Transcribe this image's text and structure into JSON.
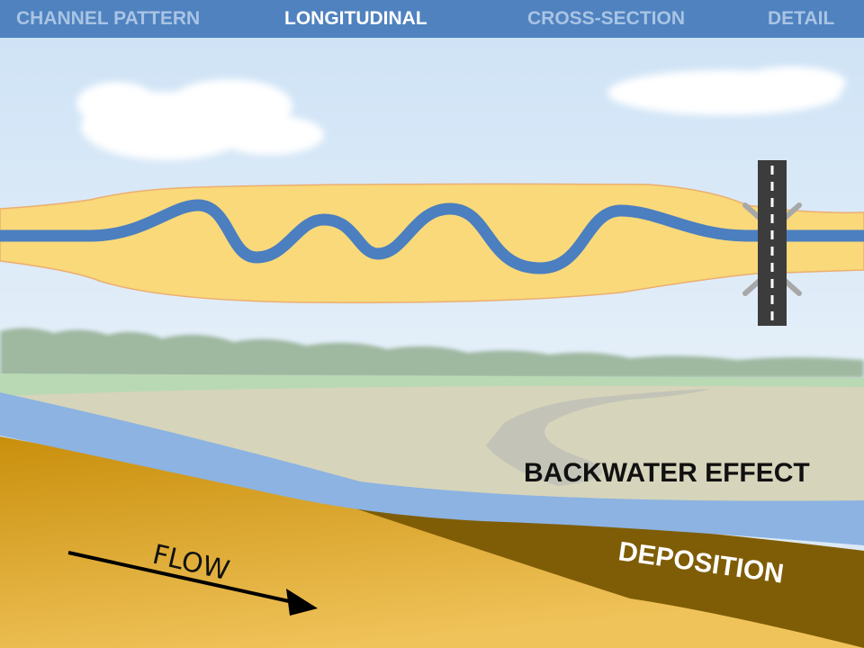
{
  "nav": {
    "tabs": [
      {
        "label": "CHANNEL PATTERN",
        "active": false
      },
      {
        "label": "LONGITUDINAL",
        "active": true
      },
      {
        "label": "CROSS-SECTION",
        "active": false
      },
      {
        "label": "DETAIL",
        "active": false
      }
    ]
  },
  "labels": {
    "backwater": "BACKWATER EFFECT",
    "deposition": "DEPOSITION",
    "flow": "FLOW"
  },
  "colors": {
    "nav_bar": "#4f82bf",
    "tab_active": "#ffffff",
    "tab_inactive": "#a9c4e4",
    "floodplain": "#f9d97a",
    "channel": "#4b7fc0",
    "water_profile": "#8cb3e2",
    "bed": "#d49a16",
    "deposition": "#7f5d06",
    "road": "#3c3c3c"
  },
  "icons": [
    "road-icon",
    "bridge-icon",
    "flow-arrow-icon",
    "cloud-icon"
  ]
}
